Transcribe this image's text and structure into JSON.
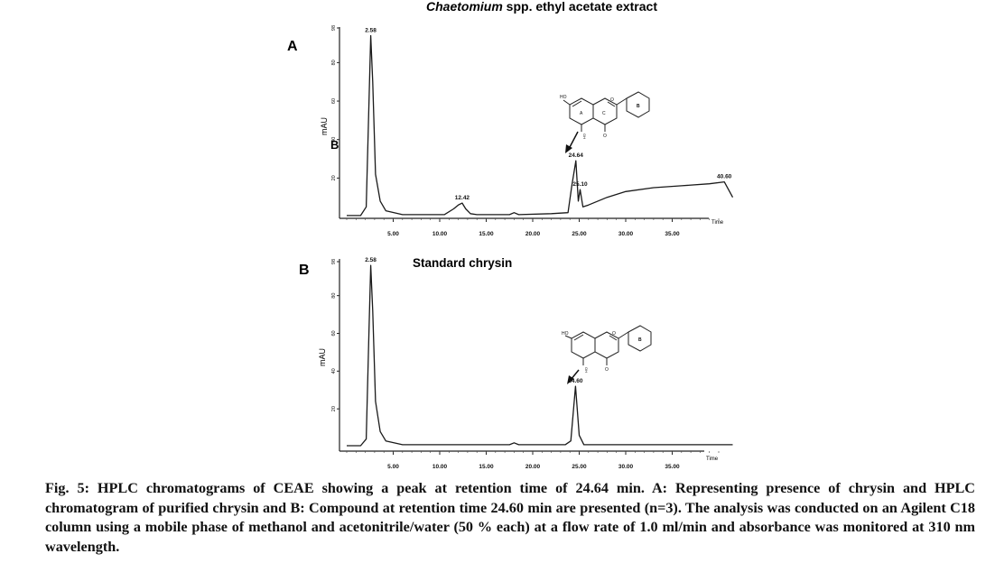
{
  "chart_data": [
    {
      "type": "line",
      "panel_letter": "A",
      "title": "Chaetomium spp. ethyl acetate extract",
      "title_italic_part": "Chaetomium",
      "title_rest": " spp. ethyl acetate extract",
      "ylabel": "mAU",
      "xlabel": "Time",
      "stray_letter": "B",
      "xlim": [
        0,
        40
      ],
      "ylim": [
        0,
        98
      ],
      "x_ticks": [
        "5.00",
        "10.00",
        "15.00",
        "20.00",
        "25.00",
        "30.00",
        "35.00"
      ],
      "y_ticks": [
        "98",
        "80",
        "60",
        "40",
        "20"
      ],
      "peaks": [
        {
          "x": 2.58,
          "y": 94,
          "label": "2.58"
        },
        {
          "x": 12.42,
          "y": 7,
          "label": "12.42"
        },
        {
          "x": 24.64,
          "y": 29,
          "label": "24.64"
        },
        {
          "x": 25.1,
          "y": 14,
          "label": "25.10"
        },
        {
          "x": 40.6,
          "y": 18,
          "label": "40.60"
        }
      ],
      "series": [
        {
          "x": [
            0,
            1.5,
            2.1,
            2.4,
            2.58,
            2.8,
            3.1,
            3.6,
            4.2,
            6,
            10.5,
            11.5,
            12.0,
            12.42,
            12.8,
            13.3,
            14,
            17.5,
            18.0,
            18.5,
            22,
            23.8,
            24.2,
            24.64,
            24.9,
            25.1,
            25.4,
            26,
            28,
            30,
            33,
            36,
            39,
            40.6,
            41.5
          ],
          "y": [
            0.5,
            0.5,
            5,
            60,
            94,
            70,
            22,
            8,
            3,
            1,
            1,
            4,
            6,
            7,
            4,
            1.5,
            1,
            1,
            2,
            1,
            1.5,
            2,
            16,
            29,
            8,
            14,
            5,
            6,
            10,
            13,
            15,
            16,
            17,
            18,
            10
          ]
        }
      ],
      "structure_labels": {
        "hydroxy": "HO",
        "ring_a": "A",
        "ring_c": "C",
        "ring_b": "B",
        "hydroxy_bottom": "OH",
        "oxo": "O",
        "ether": "O"
      }
    },
    {
      "type": "line",
      "panel_letter": "B",
      "title": "Standard chrysin",
      "ylabel": "mAU",
      "xlabel": "Time",
      "xlim": [
        0,
        40
      ],
      "ylim": [
        0,
        98
      ],
      "x_ticks": [
        "5.00",
        "10.00",
        "15.00",
        "20.00",
        "25.00",
        "30.00",
        "35.00"
      ],
      "y_ticks": [
        "98",
        "80",
        "60",
        "40",
        "20"
      ],
      "peaks": [
        {
          "x": 2.58,
          "y": 96,
          "label": "2.58"
        },
        {
          "x": 24.6,
          "y": 32,
          "label": "24.60"
        }
      ],
      "series": [
        {
          "x": [
            0,
            1.5,
            2.1,
            2.4,
            2.58,
            2.8,
            3.1,
            3.6,
            4.2,
            6,
            17.5,
            18.0,
            18.5,
            23.5,
            24.1,
            24.6,
            25.0,
            25.5,
            41.5
          ],
          "y": [
            0.5,
            0.5,
            4,
            62,
            96,
            72,
            24,
            8,
            3,
            1,
            1,
            2,
            1,
            1,
            3,
            32,
            6,
            1,
            1
          ]
        }
      ],
      "structure_labels": {
        "hydroxy": "HO",
        "ring_b": "B",
        "hydroxy_bottom": "OH",
        "oxo": "O",
        "ether": "O"
      }
    }
  ],
  "caption": "Fig. 5: HPLC chromatograms of CEAE showing a peak at retention time of 24.64 min. A: Representing presence of chrysin and HPLC chromatogram of purified chrysin and B: Compound at retention time 24.60 min are presented (n=3). The analysis was conducted on an Agilent C18 column using a mobile phase of methanol and acetonitrile/water (50 % each) at a flow rate of 1.0 ml/min and absorbance was monitored at 310 nm wavelength.",
  "colors": {
    "trace": "#1a1a1a",
    "text": "#111111"
  }
}
